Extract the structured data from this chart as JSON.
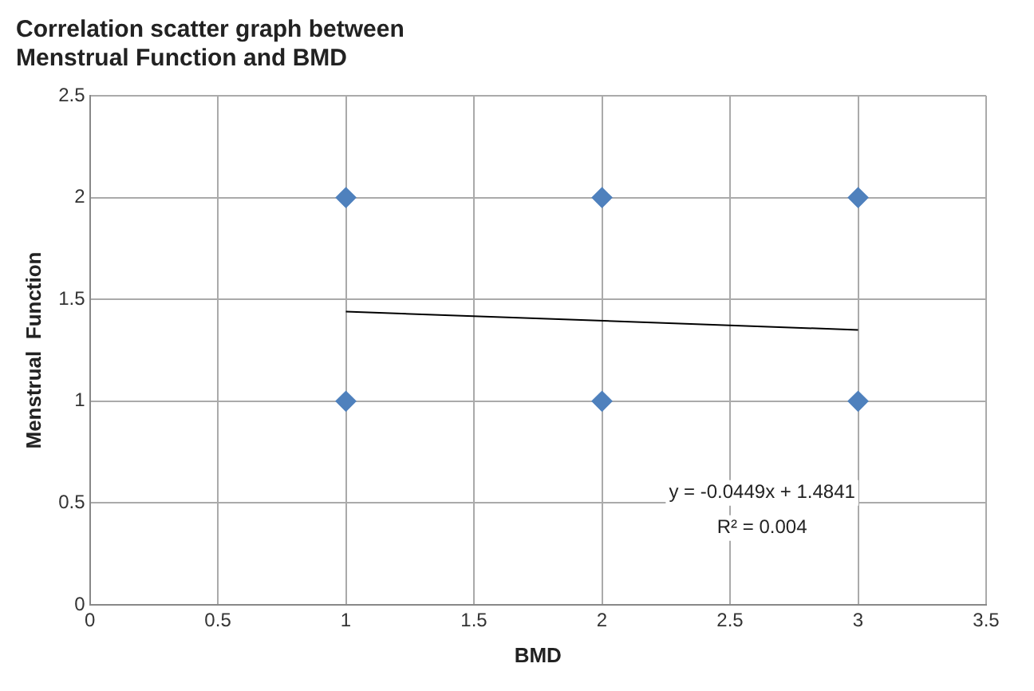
{
  "chart_data": {
    "type": "scatter",
    "title": "Correlation scatter graph between\nMenstrual Function and BMD",
    "xlabel": "BMD",
    "ylabel": "Menstrual  Function",
    "xlim": [
      0,
      3.5
    ],
    "xticks": [
      0,
      0.5,
      1,
      1.5,
      2,
      2.5,
      3,
      3.5
    ],
    "ylim": [
      0,
      2.5
    ],
    "yticks": [
      0,
      0.5,
      1,
      1.5,
      2,
      2.5
    ],
    "grid": true,
    "legend": false,
    "marker": "diamond",
    "series": [
      {
        "color": "#4f81bd",
        "x": [
          1,
          2,
          3,
          1,
          2,
          3
        ],
        "values": [
          2,
          2,
          2,
          1,
          1,
          1
        ]
      },
      {
        "type": "line",
        "color": "#000000",
        "marker": "none",
        "x": [
          1,
          3
        ],
        "values": [
          1.44,
          1.35
        ]
      }
    ],
    "annotations": [
      "y = -0.0449x + 1.4841",
      "R² = 0.004"
    ]
  }
}
